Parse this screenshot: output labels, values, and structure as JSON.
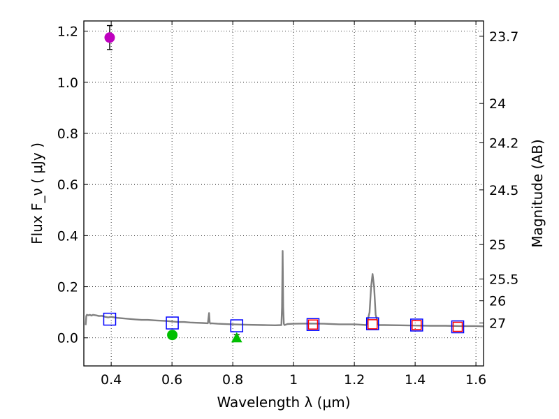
{
  "chart_data": {
    "type": "scatter",
    "xlabel": "Wavelength  λ (μm)",
    "ylabel": "Flux  F_ν  ( μJy )",
    "ylabel_right": "Magnitude (AB)",
    "xlim": [
      0.31,
      1.625
    ],
    "ylim": [
      -0.11,
      1.24
    ],
    "x_ticks": [
      0.4,
      0.6,
      0.8,
      1.0,
      1.2,
      1.4,
      1.6
    ],
    "x_tick_labels": [
      "0.4",
      "0.6",
      "0.8",
      "1",
      "1.2",
      "1.4",
      "1.6"
    ],
    "y_ticks": [
      0.0,
      0.2,
      0.4,
      0.6,
      0.8,
      1.0,
      1.2
    ],
    "y_tick_labels": [
      "0.0",
      "0.2",
      "0.4",
      "0.6",
      "0.8",
      "1.0",
      "1.2"
    ],
    "right_ticks": [
      {
        "label": "23.7",
        "flux": 1.18
      },
      {
        "label": "24",
        "flux": 0.917
      },
      {
        "label": "24.2",
        "flux": 0.763
      },
      {
        "label": "24.5",
        "flux": 0.579
      },
      {
        "label": "25",
        "flux": 0.365
      },
      {
        "label": "25.5",
        "flux": 0.23
      },
      {
        "label": "26",
        "flux": 0.145
      },
      {
        "label": "27",
        "flux": 0.058
      }
    ],
    "grid": true,
    "series": [
      {
        "name": "model spectrum",
        "kind": "line",
        "color": "#808080",
        "x": [
          0.316,
          0.318,
          0.32,
          0.325,
          0.33,
          0.335,
          0.34,
          0.35,
          0.36,
          0.37,
          0.38,
          0.39,
          0.4,
          0.42,
          0.44,
          0.46,
          0.48,
          0.5,
          0.52,
          0.55,
          0.58,
          0.6,
          0.62,
          0.64,
          0.66,
          0.68,
          0.7,
          0.718,
          0.722,
          0.724,
          0.726,
          0.73,
          0.75,
          0.8,
          0.85,
          0.9,
          0.94,
          0.96,
          0.962,
          0.964,
          0.966,
          0.968,
          0.97,
          0.98,
          1.0,
          1.05,
          1.1,
          1.15,
          1.2,
          1.24,
          1.25,
          1.255,
          1.26,
          1.265,
          1.27,
          1.28,
          1.3,
          1.35,
          1.4,
          1.45,
          1.5,
          1.55,
          1.6,
          1.625
        ],
        "y": [
          0.05,
          0.085,
          0.09,
          0.088,
          0.09,
          0.087,
          0.09,
          0.088,
          0.085,
          0.086,
          0.082,
          0.08,
          0.082,
          0.078,
          0.076,
          0.074,
          0.072,
          0.07,
          0.07,
          0.068,
          0.066,
          0.064,
          0.062,
          0.062,
          0.06,
          0.059,
          0.058,
          0.057,
          0.097,
          0.06,
          0.056,
          0.057,
          0.055,
          0.053,
          0.051,
          0.05,
          0.049,
          0.05,
          0.12,
          0.34,
          0.12,
          0.055,
          0.05,
          0.054,
          0.055,
          0.056,
          0.055,
          0.053,
          0.053,
          0.05,
          0.1,
          0.2,
          0.25,
          0.2,
          0.09,
          0.05,
          0.05,
          0.049,
          0.048,
          0.047,
          0.047,
          0.046,
          0.046,
          0.045
        ]
      },
      {
        "name": "magenta point",
        "kind": "point",
        "marker": "circle",
        "color": "#bf00bf",
        "points": [
          {
            "x": 0.395,
            "y": 1.175,
            "err": 0.047
          }
        ]
      },
      {
        "name": "green circle point",
        "kind": "point",
        "marker": "circle",
        "color": "#00bf00",
        "points": [
          {
            "x": 0.601,
            "y": 0.011,
            "err": 0.012
          }
        ]
      },
      {
        "name": "green triangle point",
        "kind": "point",
        "marker": "triangle",
        "color": "#00bf00",
        "points": [
          {
            "x": 0.813,
            "y": 0.0,
            "err": 0.012
          }
        ]
      },
      {
        "name": "blue model squares",
        "kind": "point",
        "marker": "square-open",
        "color": "#0000ff",
        "points": [
          {
            "x": 0.395,
            "y": 0.073
          },
          {
            "x": 0.601,
            "y": 0.058
          },
          {
            "x": 0.813,
            "y": 0.047
          },
          {
            "x": 1.064,
            "y": 0.052
          },
          {
            "x": 1.26,
            "y": 0.055
          },
          {
            "x": 1.405,
            "y": 0.05
          },
          {
            "x": 1.54,
            "y": 0.043
          }
        ]
      },
      {
        "name": "red observed squares",
        "kind": "point",
        "marker": "square-open",
        "color": "#ff0000",
        "points": [
          {
            "x": 1.064,
            "y": 0.052
          },
          {
            "x": 1.26,
            "y": 0.053
          },
          {
            "x": 1.405,
            "y": 0.05
          },
          {
            "x": 1.54,
            "y": 0.043
          }
        ]
      }
    ]
  }
}
